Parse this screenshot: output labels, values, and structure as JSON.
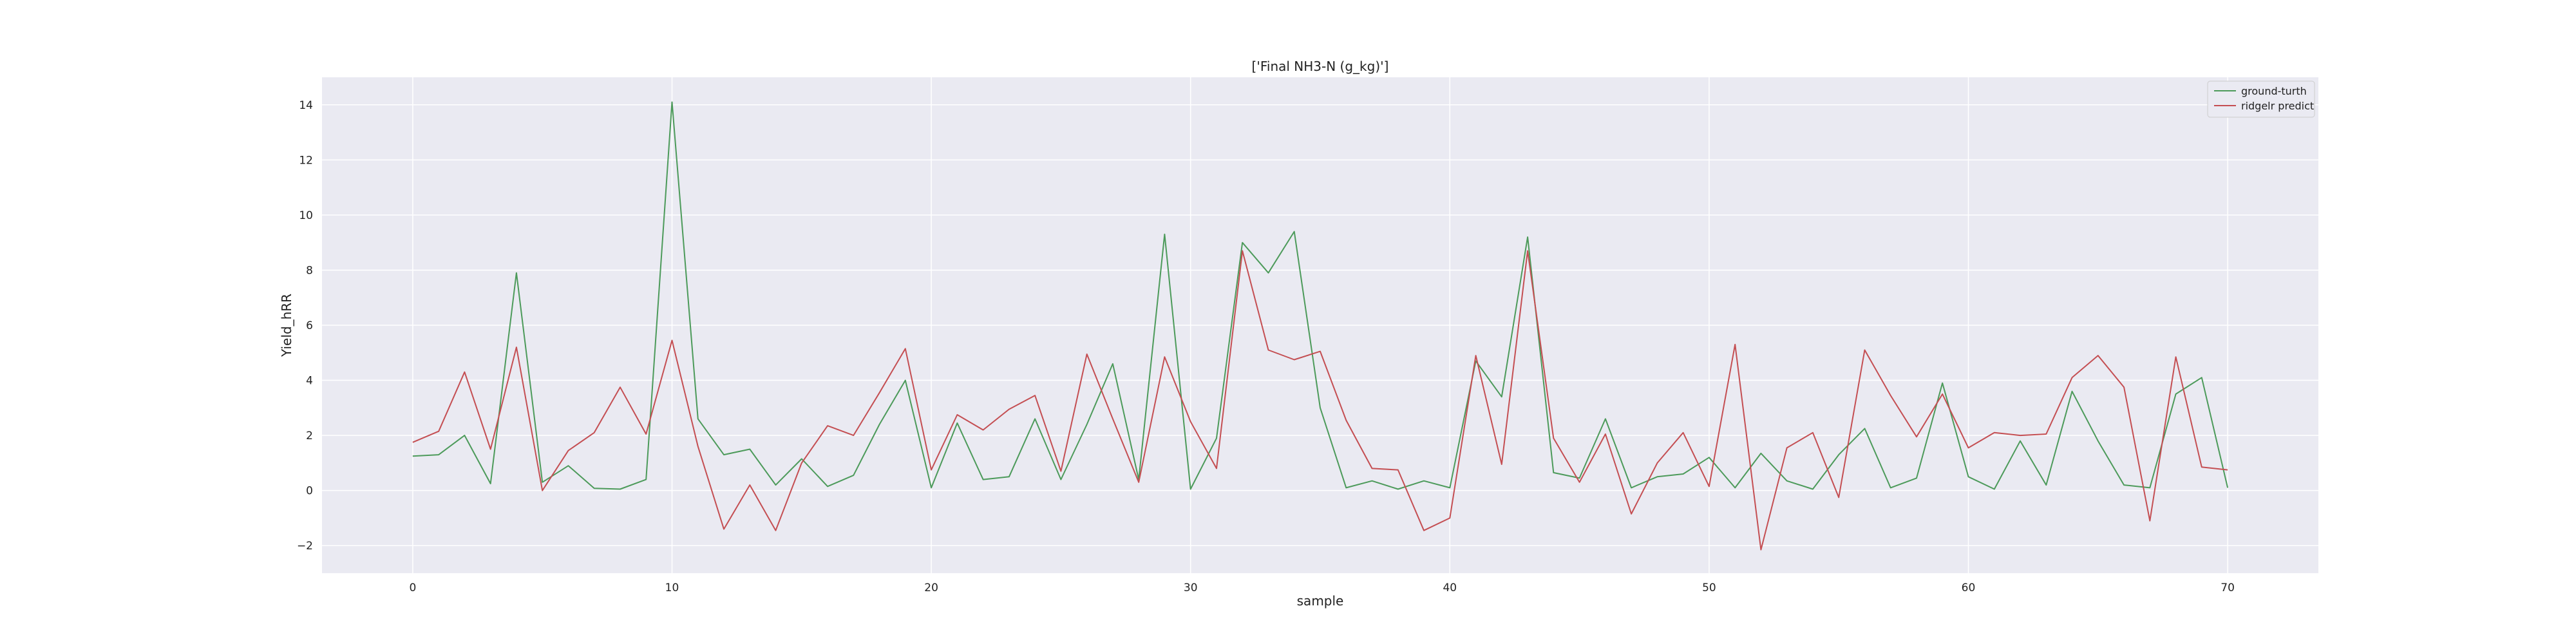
{
  "chart_data": {
    "type": "line",
    "title": "['Final NH3-N (g_kg)']",
    "xlabel": "sample",
    "ylabel": "Yield_hRR",
    "xlim": [
      -3.5,
      73.5
    ],
    "ylim": [
      -3,
      15
    ],
    "xticks": [
      0,
      10,
      20,
      30,
      40,
      50,
      60,
      70
    ],
    "yticks": [
      -2,
      0,
      2,
      4,
      6,
      8,
      10,
      12,
      14
    ],
    "grid": true,
    "legend_position": "top-right",
    "x": [
      0,
      1,
      2,
      3,
      4,
      5,
      6,
      7,
      8,
      9,
      10,
      11,
      12,
      13,
      14,
      15,
      16,
      17,
      18,
      19,
      20,
      21,
      22,
      23,
      24,
      25,
      26,
      27,
      28,
      29,
      30,
      31,
      32,
      33,
      34,
      35,
      36,
      37,
      38,
      39,
      40,
      41,
      42,
      43,
      44,
      45,
      46,
      47,
      48,
      49,
      50,
      51,
      52,
      53,
      54,
      55,
      56,
      57,
      58,
      59,
      60,
      61,
      62,
      63,
      64,
      65,
      66,
      67,
      68,
      69,
      70
    ],
    "series": [
      {
        "name": "ground-turth",
        "color": "#4c9a5a",
        "values": [
          1.25,
          1.3,
          2.0,
          0.25,
          7.9,
          0.3,
          0.9,
          0.08,
          0.05,
          0.4,
          14.1,
          2.6,
          1.3,
          1.5,
          0.2,
          1.15,
          0.15,
          0.55,
          2.4,
          4.0,
          0.1,
          2.45,
          0.4,
          0.5,
          2.6,
          0.4,
          2.4,
          4.6,
          0.4,
          9.3,
          0.05,
          1.9,
          9.0,
          7.9,
          9.4,
          3.0,
          0.1,
          0.35,
          0.05,
          0.35,
          0.1,
          4.7,
          3.4,
          9.2,
          0.65,
          0.45,
          2.6,
          0.1,
          0.5,
          0.6,
          1.2,
          0.1,
          1.35,
          0.35,
          0.05,
          1.3,
          2.25,
          0.1,
          0.45,
          3.9,
          0.5,
          0.05,
          1.8,
          0.2,
          3.6,
          1.8,
          0.2,
          0.1,
          3.5,
          4.1,
          0.1
        ]
      },
      {
        "name": "ridgelr predict",
        "color": "#c44e52",
        "values": [
          1.75,
          2.15,
          4.3,
          1.5,
          5.2,
          0.0,
          1.45,
          2.1,
          3.75,
          2.05,
          5.45,
          1.6,
          -1.4,
          0.2,
          -1.45,
          1.0,
          2.35,
          2.0,
          3.55,
          5.15,
          0.75,
          2.75,
          2.2,
          2.95,
          3.45,
          0.7,
          4.95,
          2.6,
          0.3,
          4.85,
          2.5,
          0.8,
          8.7,
          5.1,
          4.75,
          5.05,
          2.55,
          0.8,
          0.75,
          -1.45,
          -1.0,
          4.9,
          0.95,
          8.7,
          1.9,
          0.3,
          2.05,
          -0.85,
          1.0,
          2.1,
          0.15,
          5.3,
          -2.15,
          1.55,
          2.1,
          -0.25,
          5.1,
          3.45,
          1.95,
          3.5,
          1.55,
          2.1,
          2.0,
          2.05,
          4.1,
          4.9,
          3.75,
          -1.1,
          4.85,
          0.85,
          0.75
        ]
      }
    ]
  }
}
